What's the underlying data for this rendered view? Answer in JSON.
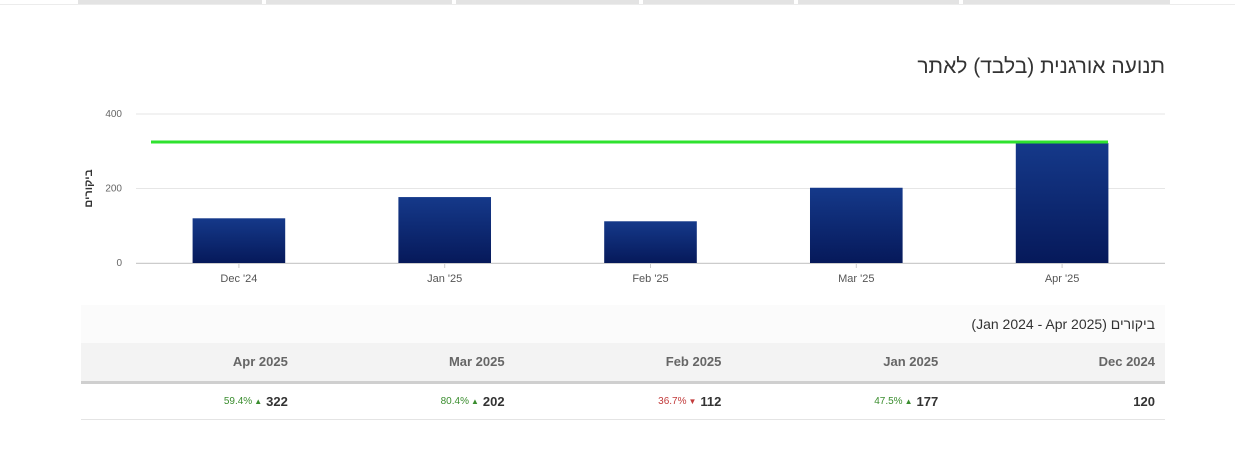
{
  "page": {
    "title": "תנועה אורגנית (בלבד) לאתר"
  },
  "chart_data": {
    "type": "bar",
    "categories": [
      "Dec '24",
      "Jan '25",
      "Feb '25",
      "Mar '25",
      "Apr '25"
    ],
    "series": [
      {
        "values": [
          120,
          177,
          112,
          202,
          322
        ],
        "color": "#06195a",
        "gradient_top": "#15398a",
        "kind": "bar"
      },
      {
        "values": [
          325,
          325,
          325,
          325,
          325
        ],
        "color": "#2fe22f",
        "kind": "line"
      }
    ],
    "ylabel": "ביקורים",
    "xlabel": "",
    "ylim": [
      0,
      400
    ],
    "yticks": [
      0,
      200,
      400
    ],
    "grid": true
  },
  "table": {
    "caption": "ביקורים (Jan 2024 - Apr 2025)",
    "columns": [
      "Dec 2024",
      "Jan 2025",
      "Feb 2025",
      "Mar 2025",
      "Apr 2025"
    ],
    "rows": [
      {
        "value": "120",
        "change": null,
        "direction": null
      },
      {
        "value": "177",
        "change": "47.5%",
        "direction": "up"
      },
      {
        "value": "112",
        "change": "36.7%",
        "direction": "down"
      },
      {
        "value": "202",
        "change": "80.4%",
        "direction": "up"
      },
      {
        "value": "322",
        "change": "59.4%",
        "direction": "up"
      }
    ],
    "up_icon": "triangle-up-icon",
    "down_icon": "triangle-down-icon"
  }
}
